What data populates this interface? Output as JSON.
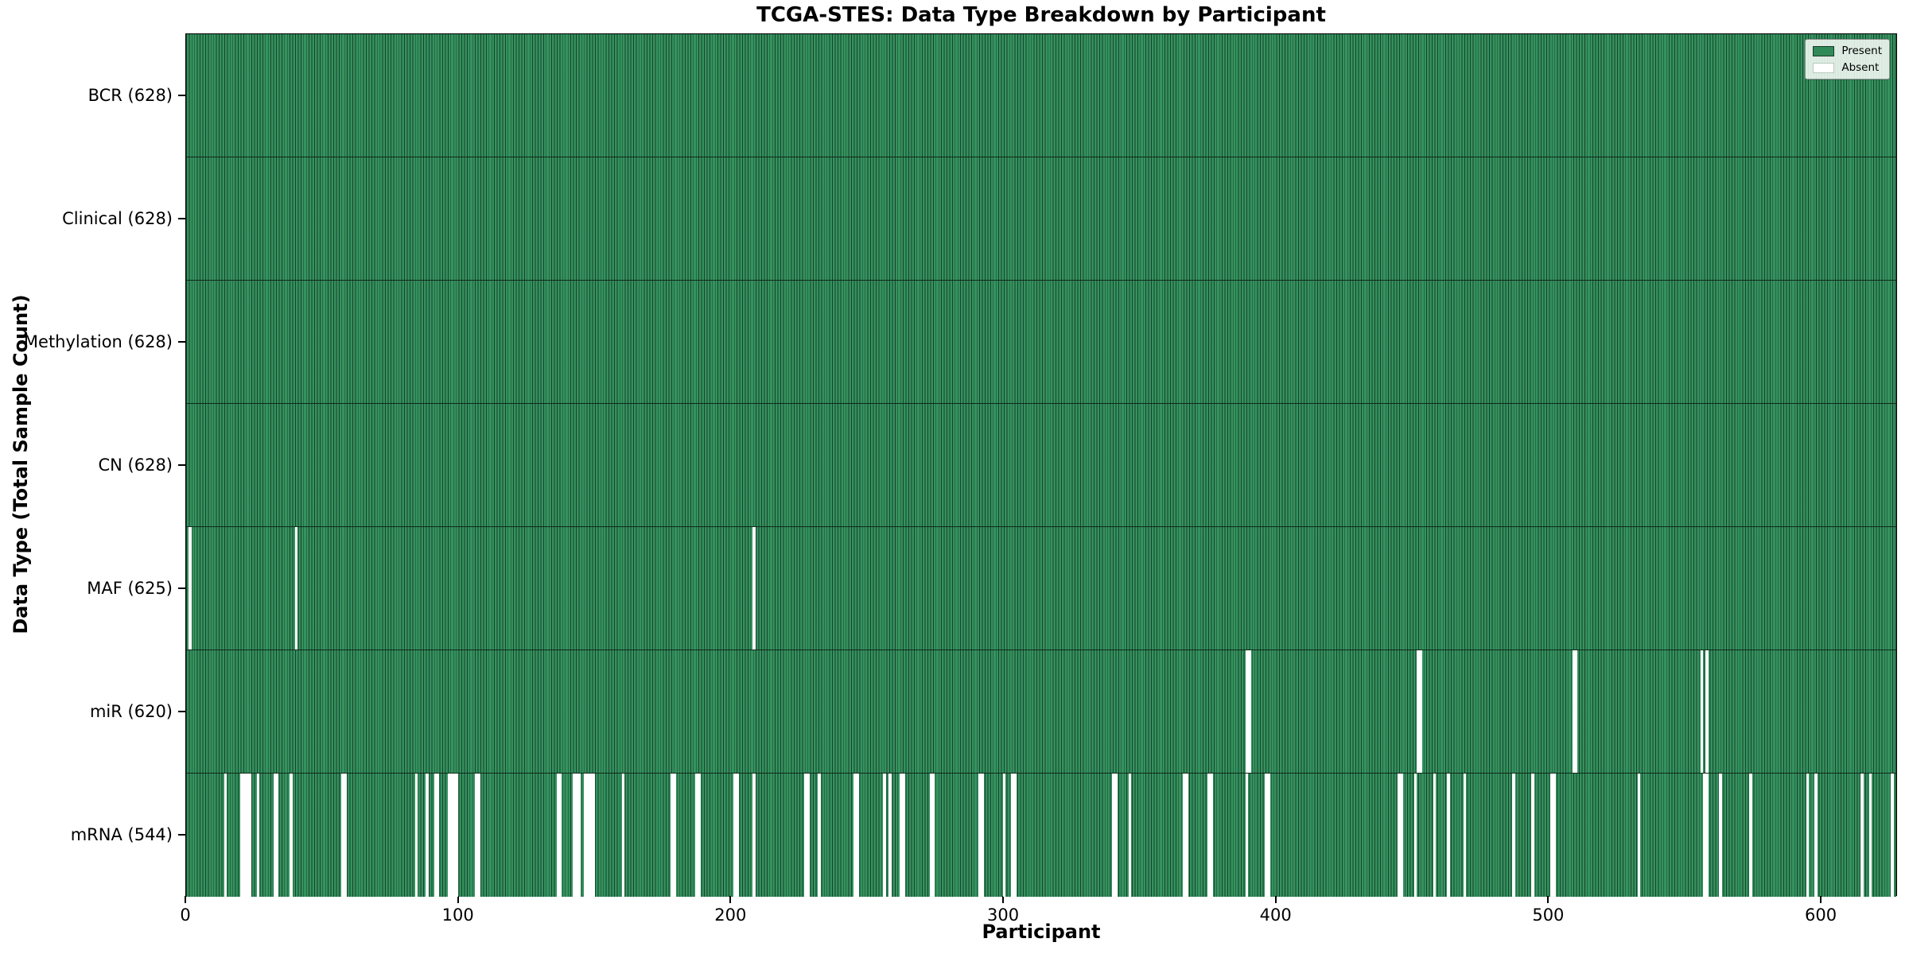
{
  "title": "TCGA-STES: Data Type Breakdown by Participant",
  "chart_data": {
    "type": "heatmap",
    "title": "TCGA-STES: Data Type Breakdown by Participant",
    "xlabel": "Participant",
    "ylabel": "Data Type (Total Sample Count)",
    "legend": {
      "present_label": "Present",
      "absent_label": "Absent"
    },
    "legend_position": "upper right",
    "colors": {
      "present": "#35925f",
      "bar_edge": "#10281a",
      "absent": "#ffffff"
    },
    "n_participants": 628,
    "x_range": [
      0,
      628
    ],
    "x_ticks": [
      0,
      100,
      200,
      300,
      400,
      500,
      600
    ],
    "grid": false,
    "rows": [
      {
        "name": "BCR",
        "label": "BCR (628)",
        "count": 628,
        "absent_participants": []
      },
      {
        "name": "Clinical",
        "label": "Clinical (628)",
        "count": 628,
        "absent_participants": []
      },
      {
        "name": "Methylation",
        "label": "Methylation (628)",
        "count": 628,
        "absent_participants": []
      },
      {
        "name": "CN",
        "label": "CN (628)",
        "count": 628,
        "absent_participants": []
      },
      {
        "name": "MAF",
        "label": "MAF (625)",
        "count": 625,
        "absent_participants": [
          1,
          40,
          208
        ]
      },
      {
        "name": "miR",
        "label": "miR (620)",
        "count": 620,
        "absent_participants": [
          389,
          390,
          452,
          453,
          509,
          510,
          556,
          558
        ]
      },
      {
        "name": "mRNA",
        "label": "mRNA (544)",
        "count": 544,
        "absent_participants": [
          14,
          20,
          21,
          22,
          23,
          26,
          32,
          33,
          38,
          57,
          58,
          84,
          88,
          91,
          92,
          96,
          97,
          98,
          99,
          106,
          107,
          136,
          137,
          142,
          143,
          144,
          146,
          147,
          148,
          149,
          160,
          178,
          179,
          187,
          188,
          201,
          202,
          208,
          227,
          228,
          232,
          245,
          246,
          256,
          258,
          262,
          263,
          273,
          274,
          291,
          292,
          300,
          303,
          304,
          340,
          341,
          346,
          366,
          367,
          375,
          376,
          389,
          396,
          397,
          445,
          446,
          451,
          458,
          463,
          469,
          487,
          494,
          501,
          502,
          533,
          557,
          558,
          563,
          574,
          595,
          598,
          615,
          618,
          626
        ]
      }
    ]
  }
}
